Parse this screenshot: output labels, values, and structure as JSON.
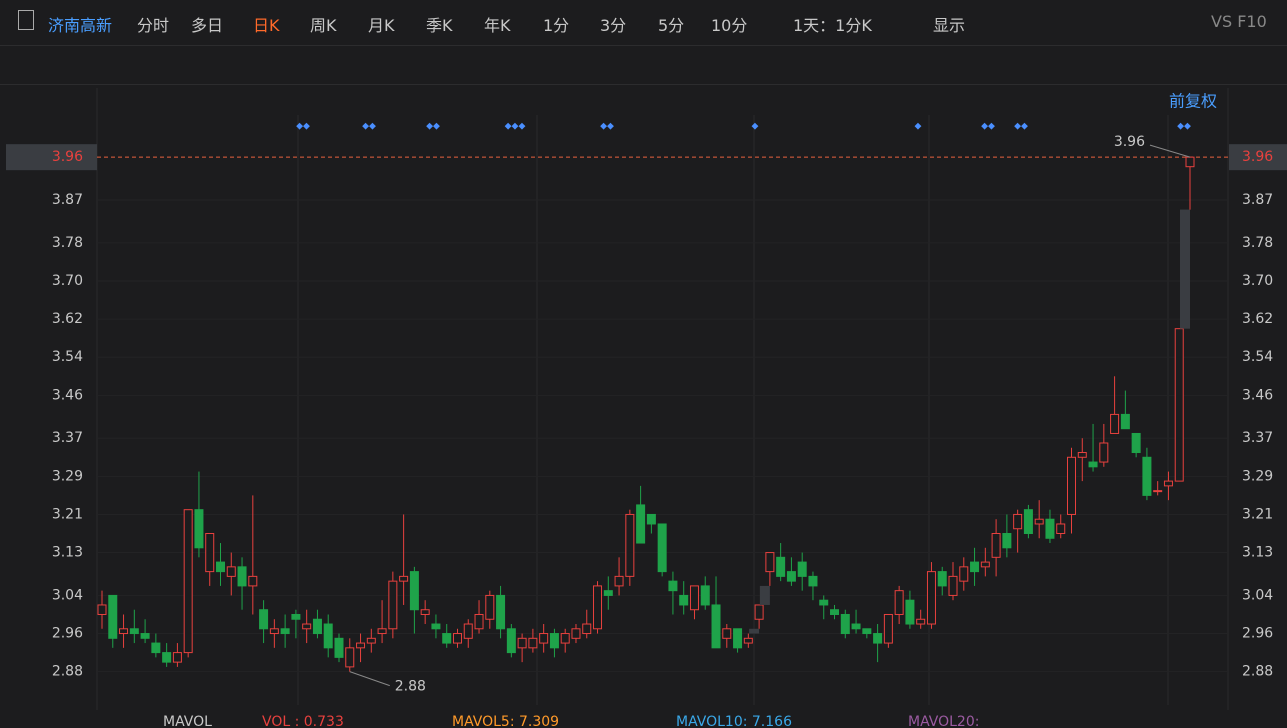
{
  "toolbar": {
    "stock": "济南高新",
    "tabs": [
      "分时",
      "多日",
      "日K",
      "周K",
      "月K",
      "季K",
      "年K",
      "1分",
      "3分",
      "5分",
      "10分"
    ],
    "period": "1天：1分K",
    "display": "显示",
    "vs": "VS F10",
    "adjust": "前复权"
  },
  "chart_data": {
    "type": "candlestick",
    "up_color": "#e8413e",
    "down_color": "#1fa34a",
    "ylim": [
      2.81,
      4.08
    ],
    "yticks": [
      3.96,
      3.87,
      3.78,
      {
        "value": 3.7,
        "label": "3.70"
      },
      3.62,
      3.54,
      3.46,
      3.37,
      3.29,
      3.21,
      3.13,
      3.04,
      2.96,
      2.88
    ],
    "max_label": 3.96,
    "min_label": 2.88,
    "series": {
      "open": [
        3.0,
        3.04,
        2.96,
        2.97,
        2.96,
        2.94,
        2.92,
        2.9,
        2.92,
        3.22,
        3.09,
        3.11,
        3.08,
        3.1,
        3.06,
        3.01,
        2.96,
        2.97,
        3.0,
        2.97,
        2.99,
        2.98,
        2.95,
        2.89,
        2.93,
        2.94,
        2.96,
        2.97,
        3.07,
        3.09,
        3.0,
        2.98,
        2.96,
        2.94,
        2.95,
        2.97,
        2.99,
        3.04,
        2.97,
        2.93,
        2.93,
        2.94,
        2.96,
        2.94,
        2.95,
        2.96,
        2.97,
        3.05,
        3.06,
        3.08,
        3.23,
        3.21,
        3.19,
        3.07,
        3.04,
        3.01,
        3.06,
        3.02,
        2.95,
        2.97,
        2.94,
        2.99,
        3.09,
        3.12,
        3.09,
        3.11,
        3.08,
        3.03,
        3.01,
        3.0,
        2.98,
        2.97,
        2.96,
        2.94,
        3.0,
        3.03,
        2.98,
        2.98,
        3.09,
        3.04,
        3.07,
        3.11,
        3.1,
        3.12,
        3.17,
        3.18,
        3.22,
        3.19,
        3.2,
        3.17,
        3.21,
        3.33,
        3.32,
        3.32,
        3.38,
        3.42,
        3.38,
        3.33,
        3.26,
        3.27,
        3.28,
        3.94
      ],
      "high": [
        3.05,
        3.04,
        3.0,
        3.01,
        2.99,
        2.96,
        2.94,
        2.94,
        3.22,
        3.3,
        3.17,
        3.15,
        3.13,
        3.12,
        3.25,
        3.03,
        2.99,
        3.0,
        3.01,
        3.01,
        3.01,
        3.0,
        2.96,
        2.95,
        2.96,
        2.97,
        3.03,
        3.09,
        3.21,
        3.1,
        3.03,
        3.0,
        2.98,
        2.97,
        2.99,
        3.03,
        3.05,
        3.06,
        2.98,
        2.96,
        2.97,
        2.98,
        2.97,
        2.97,
        2.98,
        3.01,
        3.07,
        3.08,
        3.12,
        3.22,
        3.27,
        3.21,
        3.19,
        3.09,
        3.07,
        3.06,
        3.08,
        3.08,
        2.98,
        2.97,
        2.96,
        3.02,
        3.13,
        3.15,
        3.12,
        3.13,
        3.09,
        3.04,
        3.02,
        3.01,
        3.01,
        2.97,
        2.98,
        3.0,
        3.06,
        3.05,
        3.01,
        3.11,
        3.1,
        3.11,
        3.12,
        3.14,
        3.14,
        3.2,
        3.21,
        3.22,
        3.23,
        3.24,
        3.22,
        3.21,
        3.35,
        3.37,
        3.4,
        3.4,
        3.5,
        3.47,
        3.38,
        3.35,
        3.28,
        3.3,
        3.6,
        3.96
      ],
      "low": [
        2.97,
        2.93,
        2.93,
        2.94,
        2.94,
        2.91,
        2.89,
        2.89,
        2.91,
        3.12,
        3.06,
        3.06,
        3.04,
        3.01,
        3.0,
        2.94,
        2.93,
        2.93,
        2.95,
        2.94,
        2.95,
        2.91,
        2.9,
        2.88,
        2.9,
        2.92,
        2.94,
        2.95,
        3.02,
        2.96,
        2.98,
        2.95,
        2.93,
        2.93,
        2.93,
        2.96,
        2.97,
        2.95,
        2.91,
        2.9,
        2.92,
        2.92,
        2.91,
        2.92,
        2.94,
        2.95,
        2.96,
        3.01,
        3.04,
        3.06,
        3.15,
        3.17,
        3.08,
        3.0,
        3.0,
        2.99,
        3.01,
        2.94,
        2.93,
        2.92,
        2.93,
        2.97,
        3.06,
        3.07,
        3.06,
        3.05,
        3.03,
        2.99,
        2.99,
        2.95,
        2.96,
        2.95,
        2.9,
        2.93,
        2.98,
        2.97,
        2.97,
        2.97,
        3.04,
        3.03,
        3.05,
        3.06,
        3.08,
        3.08,
        3.12,
        3.13,
        3.16,
        3.16,
        3.15,
        3.16,
        3.17,
        3.28,
        3.3,
        3.31,
        3.38,
        3.39,
        3.33,
        3.24,
        3.25,
        3.24,
        3.28,
        3.85
      ],
      "close": [
        3.02,
        2.95,
        2.97,
        2.96,
        2.95,
        2.92,
        2.9,
        2.92,
        3.22,
        3.14,
        3.17,
        3.09,
        3.1,
        3.06,
        3.08,
        2.97,
        2.97,
        2.96,
        2.99,
        2.98,
        2.96,
        2.93,
        2.91,
        2.93,
        2.94,
        2.95,
        2.97,
        3.07,
        3.08,
        3.01,
        3.01,
        2.97,
        2.94,
        2.96,
        2.98,
        3.0,
        3.04,
        2.97,
        2.92,
        2.95,
        2.95,
        2.96,
        2.93,
        2.96,
        2.97,
        2.98,
        3.06,
        3.04,
        3.08,
        3.21,
        3.15,
        3.19,
        3.09,
        3.05,
        3.02,
        3.06,
        3.02,
        2.93,
        2.97,
        2.93,
        2.95,
        3.02,
        3.13,
        3.08,
        3.07,
        3.08,
        3.06,
        3.02,
        3.0,
        2.96,
        2.97,
        2.96,
        2.94,
        3.0,
        3.05,
        2.98,
        2.99,
        3.09,
        3.06,
        3.08,
        3.1,
        3.09,
        3.11,
        3.17,
        3.14,
        3.21,
        3.17,
        3.2,
        3.16,
        3.19,
        3.33,
        3.34,
        3.31,
        3.36,
        3.42,
        3.39,
        3.34,
        3.25,
        3.26,
        3.28,
        3.6,
        3.96
      ]
    }
  },
  "indicators": [
    "MAVOL",
    "VOL : 0.733",
    "MAVOL5: 7.309",
    "MAVOL10: 7.166",
    "MAVOL20:"
  ]
}
